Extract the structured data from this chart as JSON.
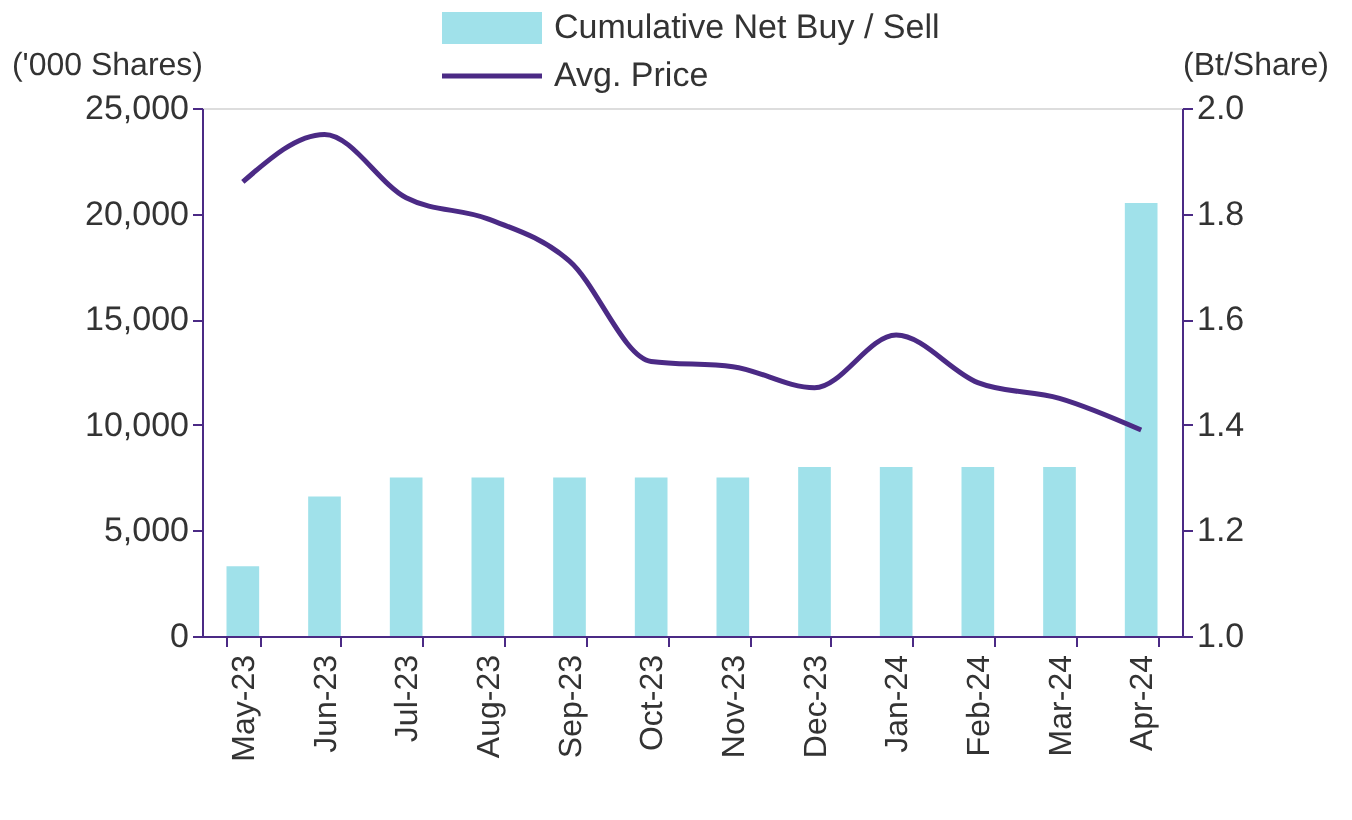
{
  "chart_data": {
    "type": "bar",
    "ylabel": "('000 Shares)",
    "y2label": "(Bt/Share)",
    "categories": [
      "May-23",
      "Jun-23",
      "Jul-23",
      "Aug-23",
      "Sep-23",
      "Oct-23",
      "Nov-23",
      "Dec-23",
      "Jan-24",
      "Feb-24",
      "Mar-24",
      "Apr-24"
    ],
    "series": [
      {
        "name": "Cumulative Net Buy / Sell",
        "color": "#a0e1ea",
        "values": [
          3300,
          6600,
          7500,
          7500,
          7500,
          7500,
          7500,
          8000,
          8000,
          8000,
          8000,
          20500
        ]
      },
      {
        "name": "Avg. Price",
        "type": "line",
        "axis": "y2",
        "color": "#4b2a85",
        "values": [
          1.86,
          1.95,
          1.83,
          1.79,
          1.71,
          1.52,
          1.51,
          1.47,
          1.57,
          1.48,
          1.45,
          1.39
        ]
      }
    ],
    "ylim": [
      0,
      25000
    ],
    "yticks": [
      0,
      {
        "value": 5000,
        "label": "5,000"
      },
      {
        "value": 10000,
        "label": "10,000"
      },
      {
        "value": 15000,
        "label": "15,000"
      },
      {
        "value": 20000,
        "label": "20,000"
      },
      {
        "value": 25000,
        "label": "25,000"
      }
    ],
    "y2lim": [
      1.0,
      2.0
    ],
    "y2ticks": [
      {
        "value": 1,
        "label": "1.0"
      },
      1.2,
      1.4,
      1.6,
      1.8,
      {
        "value": 2,
        "label": "2.0"
      }
    ],
    "legend": "top",
    "grid": false,
    "marker": "none",
    "line_style": "solid"
  }
}
